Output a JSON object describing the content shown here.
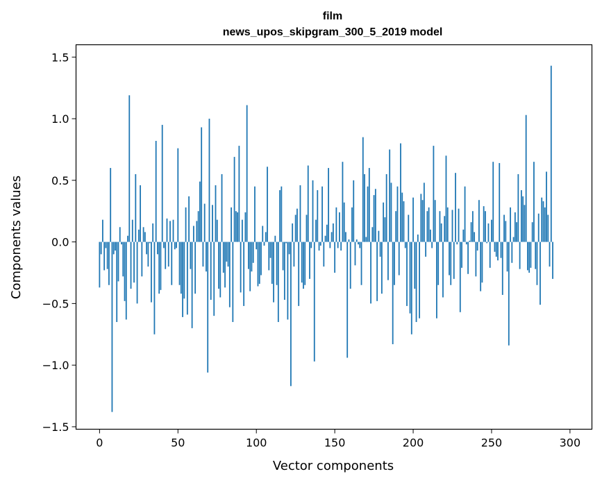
{
  "chart_data": {
    "type": "bar",
    "title": "film",
    "subtitle": "news_upos_skipgram_300_5_2019 model",
    "xlabel": "Vector components",
    "ylabel": "Components values",
    "xlim": [
      -15,
      314
    ],
    "ylim": [
      -1.52,
      1.6
    ],
    "xticks": [
      0,
      50,
      100,
      150,
      200,
      250,
      300
    ],
    "yticks": [
      -1.5,
      -1.0,
      -0.5,
      0.0,
      0.5,
      1.0,
      1.5
    ],
    "ytick_labels": [
      "−1.5",
      "−1.0",
      "−0.5",
      "0.0",
      "0.5",
      "1.0",
      "1.5"
    ],
    "grid": false,
    "bar_color": "#1f77b4",
    "values": [
      -0.37,
      -0.1,
      0.18,
      -0.23,
      -0.05,
      -0.22,
      -0.35,
      0.6,
      -1.38,
      -0.1,
      -0.07,
      -0.65,
      -0.32,
      0.12,
      -0.02,
      -0.28,
      -0.48,
      -0.63,
      0.05,
      1.19,
      -0.38,
      0.18,
      -0.33,
      0.55,
      -0.5,
      0.1,
      0.46,
      -0.28,
      0.12,
      0.08,
      -0.1,
      -0.2,
      -0.01,
      -0.49,
      0.15,
      -0.75,
      0.82,
      -0.1,
      -0.42,
      -0.39,
      0.95,
      -0.05,
      -0.22,
      0.19,
      -0.2,
      0.17,
      -0.35,
      0.18,
      -0.06,
      -0.05,
      0.76,
      -0.35,
      -0.42,
      -0.61,
      -0.46,
      0.28,
      -0.59,
      0.37,
      -0.22,
      -0.7,
      0.13,
      -0.42,
      0.17,
      0.25,
      0.49,
      0.93,
      -0.2,
      0.31,
      -0.24,
      -1.06,
      1.0,
      -0.47,
      0.3,
      -0.6,
      0.46,
      0.18,
      -0.38,
      -0.45,
      0.55,
      -0.25,
      -0.37,
      -0.16,
      -0.2,
      -0.53,
      0.28,
      -0.65,
      0.69,
      0.25,
      0.24,
      0.78,
      -0.41,
      0.18,
      -0.52,
      0.24,
      1.11,
      -0.22,
      -0.4,
      -0.24,
      -0.17,
      0.45,
      -0.06,
      -0.36,
      -0.34,
      -0.27,
      0.13,
      -0.03,
      0.08,
      0.61,
      -0.23,
      -0.13,
      -0.34,
      -0.49,
      0.05,
      -0.35,
      -0.65,
      0.42,
      0.45,
      -0.23,
      -0.47,
      -0.01,
      -0.63,
      -0.1,
      -1.17,
      0.15,
      -0.2,
      0.22,
      0.27,
      -0.52,
      0.46,
      -0.33,
      -0.38,
      -0.35,
      0.22,
      0.62,
      -0.3,
      -0.05,
      0.5,
      -0.97,
      0.18,
      0.42,
      -0.07,
      -0.03,
      0.45,
      -0.2,
      0.05,
      0.14,
      0.6,
      -0.05,
      0.08,
      0.15,
      -0.25,
      0.28,
      -0.05,
      0.24,
      -0.07,
      0.65,
      0.32,
      0.08,
      -0.94,
      0.02,
      -0.38,
      0.28,
      0.5,
      -0.19,
      0.02,
      -0.02,
      -0.05,
      -0.35,
      0.85,
      0.55,
      0.04,
      0.45,
      0.6,
      -0.5,
      0.12,
      0.38,
      0.43,
      -0.48,
      0.09,
      -0.12,
      -0.42,
      0.32,
      0.2,
      0.55,
      -0.31,
      0.75,
      0.48,
      -0.83,
      -0.35,
      0.25,
      0.45,
      -0.27,
      0.8,
      0.4,
      0.33,
      -0.05,
      -0.52,
      0.22,
      -0.58,
      -0.75,
      0.36,
      -0.38,
      -0.65,
      0.06,
      -0.62,
      0.39,
      0.34,
      0.48,
      -0.12,
      0.25,
      0.28,
      0.1,
      -0.05,
      0.78,
      0.34,
      -0.62,
      -0.35,
      0.25,
      0.15,
      -0.45,
      0.21,
      0.7,
      0.28,
      -0.27,
      -0.35,
      0.26,
      -0.3,
      0.56,
      -0.02,
      0.27,
      -0.57,
      -0.21,
      0.1,
      0.45,
      -0.02,
      -0.26,
      0.01,
      0.16,
      0.25,
      0.08,
      -0.28,
      -0.07,
      0.34,
      -0.4,
      -0.33,
      0.29,
      0.25,
      -0.01,
      0.15,
      -0.21,
      0.18,
      0.65,
      -0.08,
      -0.12,
      -0.15,
      0.64,
      -0.13,
      -0.43,
      0.22,
      0.17,
      -0.24,
      -0.84,
      0.28,
      -0.17,
      0.04,
      0.24,
      0.16,
      0.55,
      -0.22,
      0.42,
      0.37,
      0.3,
      1.03,
      -0.23,
      -0.25,
      -0.21,
      0.16,
      0.65,
      -0.22,
      -0.35,
      0.23,
      -0.51,
      0.36,
      0.33,
      0.28,
      0.57,
      0.22,
      -0.2,
      1.43,
      -0.3
    ]
  }
}
